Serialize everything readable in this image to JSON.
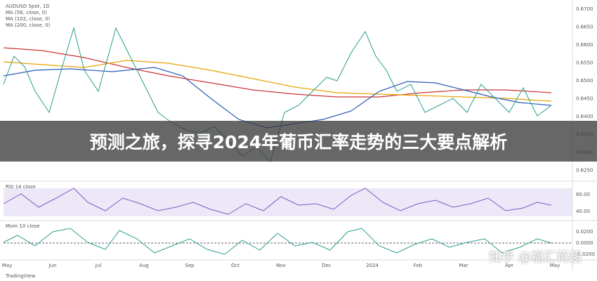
{
  "banner": {
    "title": "预测之旅，探寻2024年葡币汇率走势的三大要点解析"
  },
  "watermark": "知乎 @福汇蒋超",
  "legend": [
    "AUDUSD Spot, 1D",
    "MA (56, close, 0)",
    "MA (102, close, 0)",
    "MA (200, close, 0)"
  ],
  "price_axis": [
    "0.6700",
    "0.6650",
    "0.6600",
    "0.6550",
    "0.6500",
    "0.6450",
    "0.6400",
    "0.6350",
    "0.6300",
    "0.6250"
  ],
  "rsi_panel": {
    "label": "RSI 14 close",
    "axis": [
      "60.00",
      "40.00"
    ]
  },
  "mom_panel": {
    "label": "Mom 10 close",
    "axis": [
      "0.0200",
      "0.0000",
      "-0.0200"
    ]
  },
  "time_axis": [
    "May",
    "Jun",
    "Jul",
    "Aug",
    "Sep",
    "Oct",
    "Nov",
    "Dec",
    "2024",
    "Feb",
    "Mar",
    "Apr",
    "May"
  ],
  "footer": "TradingView"
}
